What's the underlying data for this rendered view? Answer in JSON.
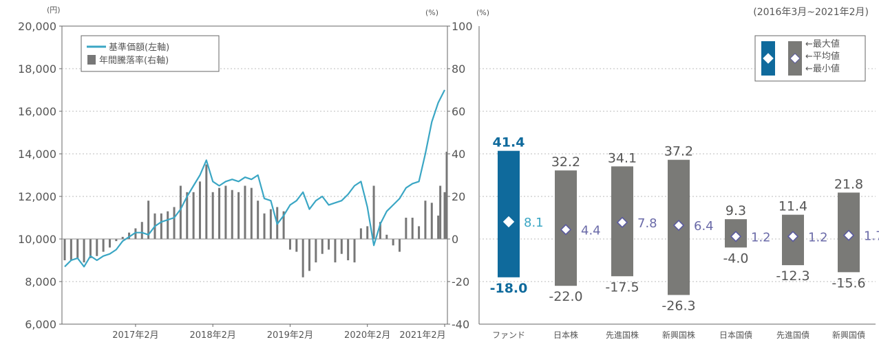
{
  "period_label": "(2016年3月~2021年2月)",
  "colors": {
    "line": "#3aa6c4",
    "bar": "#777777",
    "fund": "#0f6a9c",
    "comp": "#7a7a77",
    "marker_fill": "#ffffff",
    "marker_stroke_fund": "#ffffff",
    "marker_stroke_comp": "#5a5aa0",
    "avg_fund": "#3aa6c4",
    "avg_comp": "#6a6aa8",
    "axis": "#666666",
    "grid": "#bbbbbb"
  },
  "chart_data": [
    {
      "type": "line+bar",
      "left_unit": "(円)",
      "right_unit": "(%)",
      "left_ylim": [
        6000,
        20000
      ],
      "left_ticks": [
        "6,000",
        "8,000",
        "10,000",
        "12,000",
        "14,000",
        "16,000",
        "18,000",
        "20,000"
      ],
      "right_ylim": [
        -40,
        100
      ],
      "right_ticks": [
        "-40",
        "-20",
        "0",
        "20",
        "40",
        "60",
        "80",
        "100"
      ],
      "x_ticks": [
        "2017年2月",
        "2018年2月",
        "2019年2月",
        "2020年2月",
        "2021年2月"
      ],
      "x_range": [
        "2016-03",
        "2021-02"
      ],
      "legend": [
        "基準価額(左軸)",
        "年間騰落率(右軸)"
      ],
      "nav_series": [
        [
          "2016-03",
          8700
        ],
        [
          "2016-04",
          9000
        ],
        [
          "2016-05",
          9100
        ],
        [
          "2016-06",
          8700
        ],
        [
          "2016-07",
          9200
        ],
        [
          "2016-08",
          9000
        ],
        [
          "2016-09",
          9200
        ],
        [
          "2016-10",
          9300
        ],
        [
          "2016-11",
          9500
        ],
        [
          "2016-12",
          9900
        ],
        [
          "2017-01",
          10100
        ],
        [
          "2017-02",
          10300
        ],
        [
          "2017-03",
          10300
        ],
        [
          "2017-04",
          10200
        ],
        [
          "2017-05",
          10600
        ],
        [
          "2017-06",
          10800
        ],
        [
          "2017-07",
          10900
        ],
        [
          "2017-08",
          11000
        ],
        [
          "2017-09",
          11400
        ],
        [
          "2017-10",
          12000
        ],
        [
          "2017-11",
          12500
        ],
        [
          "2017-12",
          13000
        ],
        [
          "2018-01",
          13700
        ],
        [
          "2018-02",
          12700
        ],
        [
          "2018-03",
          12500
        ],
        [
          "2018-04",
          12700
        ],
        [
          "2018-05",
          12800
        ],
        [
          "2018-06",
          12700
        ],
        [
          "2018-07",
          12900
        ],
        [
          "2018-08",
          12800
        ],
        [
          "2018-09",
          13000
        ],
        [
          "2018-10",
          11900
        ],
        [
          "2018-11",
          11800
        ],
        [
          "2018-12",
          10700
        ],
        [
          "2019-01",
          11100
        ],
        [
          "2019-02",
          11600
        ],
        [
          "2019-03",
          11800
        ],
        [
          "2019-04",
          12200
        ],
        [
          "2019-05",
          11400
        ],
        [
          "2019-06",
          11800
        ],
        [
          "2019-07",
          12000
        ],
        [
          "2019-08",
          11600
        ],
        [
          "2019-09",
          11700
        ],
        [
          "2019-10",
          11800
        ],
        [
          "2019-11",
          12100
        ],
        [
          "2019-12",
          12500
        ],
        [
          "2020-01",
          12700
        ],
        [
          "2020-02",
          11500
        ],
        [
          "2020-03",
          9700
        ],
        [
          "2020-04",
          10700
        ],
        [
          "2020-05",
          11300
        ],
        [
          "2020-06",
          11600
        ],
        [
          "2020-07",
          11900
        ],
        [
          "2020-08",
          12400
        ],
        [
          "2020-09",
          12600
        ],
        [
          "2020-10",
          12700
        ],
        [
          "2020-11",
          14000
        ],
        [
          "2020-12",
          15500
        ],
        [
          "2021-01",
          16400
        ],
        [
          "2021-02",
          17000
        ]
      ],
      "return_series": [
        [
          "2016-03",
          -10
        ],
        [
          "2016-04",
          -10
        ],
        [
          "2016-05",
          -9
        ],
        [
          "2016-06",
          -11
        ],
        [
          "2016-07",
          -9
        ],
        [
          "2016-08",
          -8
        ],
        [
          "2016-09",
          -6
        ],
        [
          "2016-10",
          -4
        ],
        [
          "2016-11",
          -1
        ],
        [
          "2016-12",
          1
        ],
        [
          "2017-01",
          3
        ],
        [
          "2017-02",
          5
        ],
        [
          "2017-03",
          8
        ],
        [
          "2017-04",
          18
        ],
        [
          "2017-05",
          12
        ],
        [
          "2017-06",
          12
        ],
        [
          "2017-07",
          13
        ],
        [
          "2017-08",
          15
        ],
        [
          "2017-09",
          25
        ],
        [
          "2017-10",
          22
        ],
        [
          "2017-11",
          22
        ],
        [
          "2017-12",
          27
        ],
        [
          "2018-01",
          35
        ],
        [
          "2018-02",
          22
        ],
        [
          "2018-03",
          24
        ],
        [
          "2018-04",
          25
        ],
        [
          "2018-05",
          23
        ],
        [
          "2018-06",
          22
        ],
        [
          "2018-07",
          25
        ],
        [
          "2018-08",
          24
        ],
        [
          "2018-09",
          18
        ],
        [
          "2018-10",
          12
        ],
        [
          "2018-11",
          14
        ],
        [
          "2018-12",
          15
        ],
        [
          "2019-01",
          13
        ],
        [
          "2019-02",
          -5
        ],
        [
          "2019-03",
          -6
        ],
        [
          "2019-04",
          -18
        ],
        [
          "2019-05",
          -15
        ],
        [
          "2019-06",
          -11
        ],
        [
          "2019-07",
          -7
        ],
        [
          "2019-08",
          -5
        ],
        [
          "2019-09",
          -11
        ],
        [
          "2019-10",
          -7
        ],
        [
          "2019-11",
          -10
        ],
        [
          "2019-12",
          -11
        ],
        [
          "2020-01",
          5
        ],
        [
          "2020-02",
          6
        ],
        [
          "2020-03",
          25
        ],
        [
          "2020-04",
          8
        ],
        [
          "2020-05",
          2
        ],
        [
          "2020-06",
          -3
        ],
        [
          "2020-07",
          -6
        ],
        [
          "2020-08",
          10
        ],
        [
          "2020-09",
          10
        ],
        [
          "2020-10",
          6
        ],
        [
          "2020-11",
          18
        ],
        [
          "2020-12",
          17
        ],
        [
          "2021-01",
          11
        ],
        [
          "2021-02",
          22
        ]
      ],
      "return_extra": [
        [
          "2021-01",
          25
        ],
        [
          "2021-02",
          41
        ]
      ]
    },
    {
      "type": "range-bar",
      "unit": "(%)",
      "ylim": [
        -40,
        100
      ],
      "legend_labels": [
        "←最大値",
        "←平均値",
        "←最小値"
      ],
      "categories": [
        "ファンド",
        "日本株",
        "先進国株",
        "新興国株",
        "日本国債",
        "先進国債",
        "新興国債"
      ],
      "max": [
        41.4,
        32.2,
        34.1,
        37.2,
        9.3,
        11.4,
        21.8
      ],
      "avg": [
        8.1,
        4.4,
        7.8,
        6.4,
        1.2,
        1.2,
        1.7
      ],
      "min": [
        -18.0,
        -22.0,
        -17.5,
        -26.3,
        -4.0,
        -12.3,
        -15.6
      ],
      "max_labels": [
        "41.4",
        "32.2",
        "34.1",
        "37.2",
        "9.3",
        "11.4",
        "21.8"
      ],
      "avg_labels": [
        "8.1",
        "4.4",
        "7.8",
        "6.4",
        "1.2",
        "1.2",
        "1.7"
      ],
      "min_labels": [
        "-18.0",
        "-22.0",
        "-17.5",
        "-26.3",
        "-4.0",
        "-12.3",
        "-15.6"
      ]
    }
  ]
}
